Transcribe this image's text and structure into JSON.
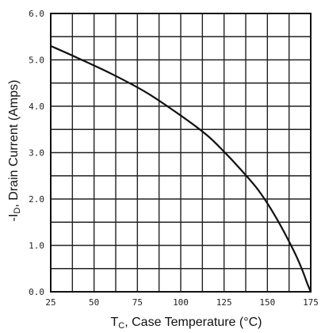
{
  "chart_data": {
    "type": "line",
    "title": "",
    "xlabel_main": "T",
    "xlabel_sub": "C",
    "xlabel_rest": ", Case Temperature (°C)",
    "ylabel_main": "-I",
    "ylabel_sub": "D",
    "ylabel_rest": ", Drain Current (Amps)",
    "xlim": [
      25,
      175
    ],
    "ylim": [
      0,
      6
    ],
    "x_ticks": [
      "25",
      "50",
      "75",
      "100",
      "125",
      "150",
      "175"
    ],
    "y_ticks": [
      "0.0",
      "1.0",
      "2.0",
      "3.0",
      "4.0",
      "5.0",
      "6.0"
    ],
    "grid": true,
    "series": [
      {
        "x": [
          25,
          40,
          60,
          80,
          100,
          115,
          125,
          135,
          145,
          155,
          165,
          170,
          173,
          175
        ],
        "y": [
          5.3,
          5.05,
          4.7,
          4.3,
          3.8,
          3.38,
          3.02,
          2.62,
          2.18,
          1.6,
          0.9,
          0.48,
          0.18,
          0.0
        ]
      }
    ]
  }
}
